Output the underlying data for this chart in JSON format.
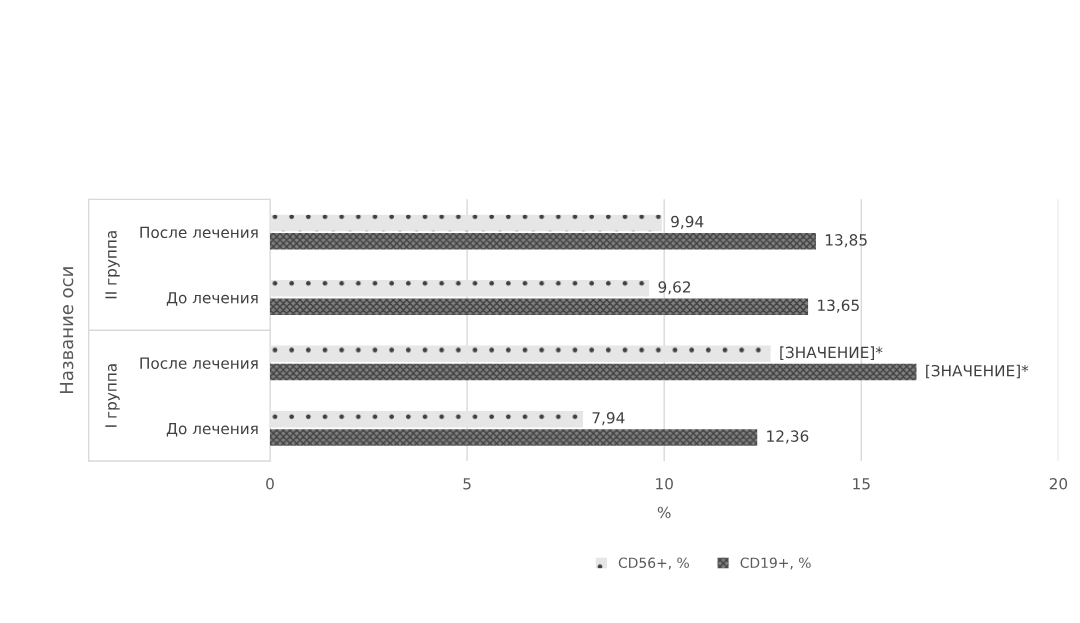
{
  "chart_data": {
    "type": "bar",
    "orientation": "horizontal",
    "xlabel": "%",
    "ylabel": "Название оси",
    "categories": [
      "После лечения",
      "До лечения",
      "После лечения",
      "До лечения"
    ],
    "annotations": [
      "II группа",
      "I группа"
    ],
    "series": [
      {
        "name": "CD56+, %",
        "color": "#e6e6e6",
        "values": [
          9.94,
          9.62,
          12.7,
          7.94
        ],
        "value_labels": [
          "9,94",
          "9,62",
          "[ЗНАЧЕНИЕ]*",
          "7,94"
        ]
      },
      {
        "name": "CD19+, %",
        "color": "#808080",
        "values": [
          13.85,
          13.65,
          16.4,
          12.36
        ],
        "value_labels": [
          "13,85",
          "13,65",
          "[ЗНАЧЕНИЕ]*",
          "12,36"
        ]
      }
    ],
    "xlim": [
      0,
      20
    ],
    "xticks": [
      0,
      5,
      10,
      15,
      20
    ],
    "grid": "x",
    "legend": "bottom"
  }
}
